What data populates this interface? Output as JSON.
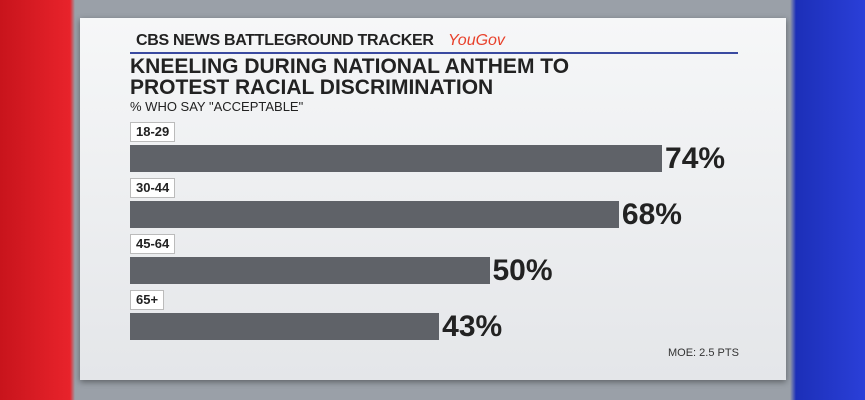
{
  "chart_data": {
    "type": "bar",
    "header": "CBS NEWS BATTLEGROUND TRACKER",
    "brand": "YouGov",
    "title": "KNEELING DURING NATIONAL ANTHEM TO PROTEST RACIAL DISCRIMINATION",
    "subtitle": "% WHO SAY \"ACCEPTABLE\"",
    "categories": [
      "18-29",
      "30-44",
      "45-64",
      "65+"
    ],
    "values": [
      74,
      68,
      50,
      43
    ],
    "value_labels": [
      "74%",
      "68%",
      "50%",
      "43%"
    ],
    "color": "#5f6268",
    "note": "MOE: 2.5 PTS"
  }
}
